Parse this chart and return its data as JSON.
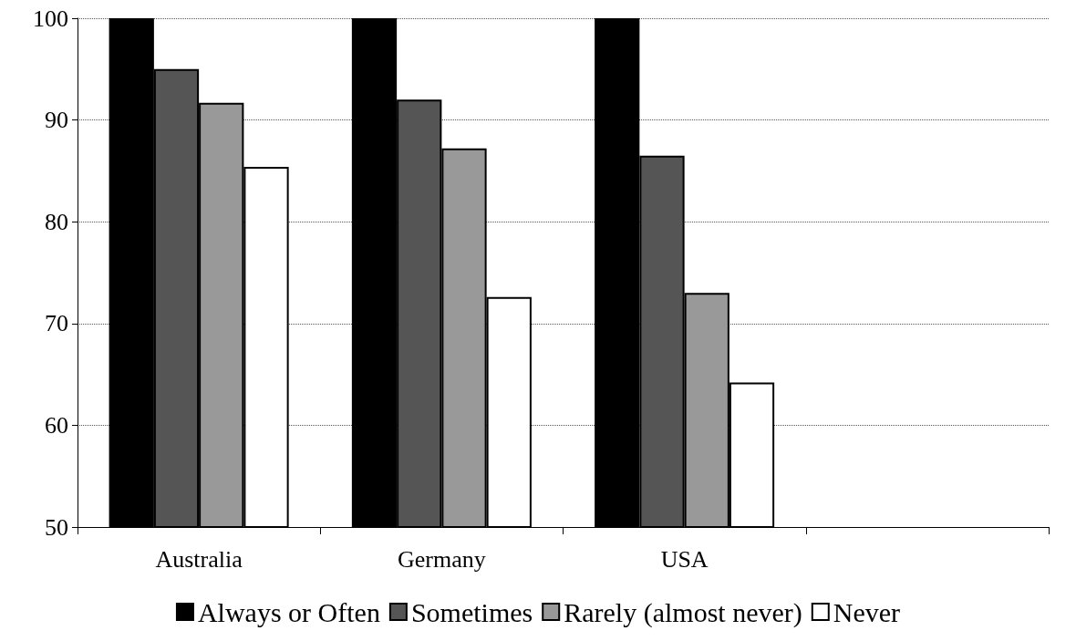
{
  "chart_data": {
    "type": "bar",
    "categories": [
      "Australia",
      "Germany",
      "USA",
      null
    ],
    "series": [
      {
        "name": "Always or Often",
        "color": "#000000",
        "values": [
          100,
          100,
          100,
          50
        ]
      },
      {
        "name": "Sometimes",
        "color": "#555555",
        "values": [
          95.0,
          92.0,
          86.5,
          50
        ]
      },
      {
        "name": "Rarely (almost never)",
        "color": "#999999",
        "values": [
          91.7,
          87.2,
          73.0,
          50
        ]
      },
      {
        "name": "Never",
        "color": "#ffffff",
        "values": [
          85.4,
          72.6,
          64.2,
          50
        ]
      }
    ],
    "ylim": [
      50,
      100
    ],
    "yticks": [
      50,
      60,
      70,
      80,
      90,
      100
    ],
    "grid": "y",
    "legend": "bottom"
  }
}
